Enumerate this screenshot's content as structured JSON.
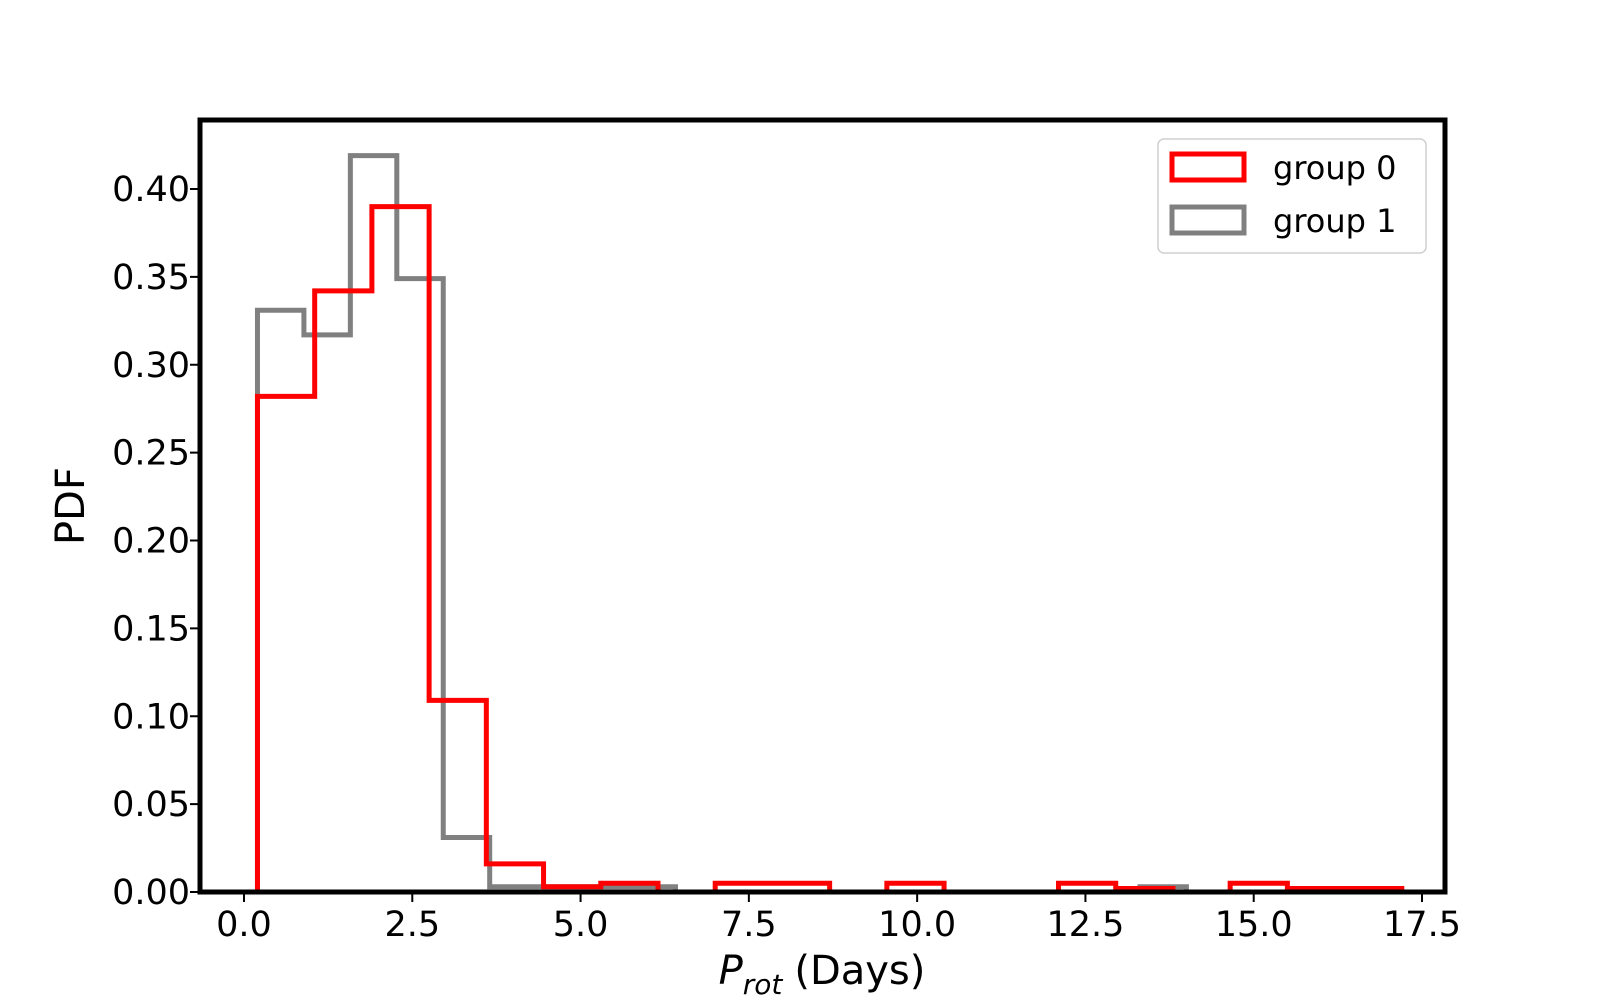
{
  "chart_data": {
    "type": "histogram",
    "xlabel_main": "P",
    "xlabel_sub": "rot",
    "xlabel_unit": "(Days)",
    "ylabel": "PDF",
    "xlim": [
      -1.2,
      17.5
    ],
    "ylim": [
      0,
      0.44
    ],
    "x_ticks": [
      0.0,
      2.5,
      5.0,
      7.5,
      10.0,
      12.5,
      15.0,
      17.5
    ],
    "x_tick_labels": [
      "0.0",
      "2.5",
      "5.0",
      "7.5",
      "10.0",
      "12.5",
      "15.0",
      "17.5"
    ],
    "y_ticks": [
      0.0,
      0.05,
      0.1,
      0.15,
      0.2,
      0.25,
      0.3,
      0.35,
      0.4
    ],
    "y_tick_labels": [
      "0.00",
      "0.05",
      "0.10",
      "0.15",
      "0.20",
      "0.25",
      "0.30",
      "0.35",
      "0.40"
    ],
    "grid": false,
    "legend_position": "top-right",
    "series": [
      {
        "name": "group 0",
        "color": "#ff0000",
        "bin_edges": [
          0.2,
          1.05,
          1.9,
          2.75,
          3.6,
          4.45,
          5.3,
          6.15,
          7.0,
          7.85,
          8.7,
          9.55,
          10.4,
          11.25,
          12.1,
          12.95,
          13.8,
          14.65,
          15.5,
          16.35,
          17.2
        ],
        "values": [
          0.282,
          0.342,
          0.39,
          0.109,
          0.016,
          0.003,
          0.005,
          0.0,
          0.005,
          0.005,
          0.0,
          0.005,
          0.0,
          0.0,
          0.005,
          0.002,
          0.0,
          0.005,
          0.002,
          0.002
        ]
      },
      {
        "name": "group 1",
        "color": "#808080",
        "bin_edges": [
          0.2,
          0.89,
          1.58,
          2.27,
          2.96,
          3.65,
          4.34,
          5.03,
          5.72,
          6.41,
          7.1,
          7.79,
          8.48,
          9.17,
          9.86,
          10.55,
          11.24,
          11.93,
          12.62,
          13.31,
          14.0
        ],
        "values": [
          0.331,
          0.317,
          0.419,
          0.349,
          0.031,
          0.003,
          0.003,
          0.003,
          0.003,
          0.0,
          0.0,
          0.0,
          0.0,
          0.0,
          0.0,
          0.0,
          0.0,
          0.0,
          0.0,
          0.003
        ]
      }
    ]
  }
}
